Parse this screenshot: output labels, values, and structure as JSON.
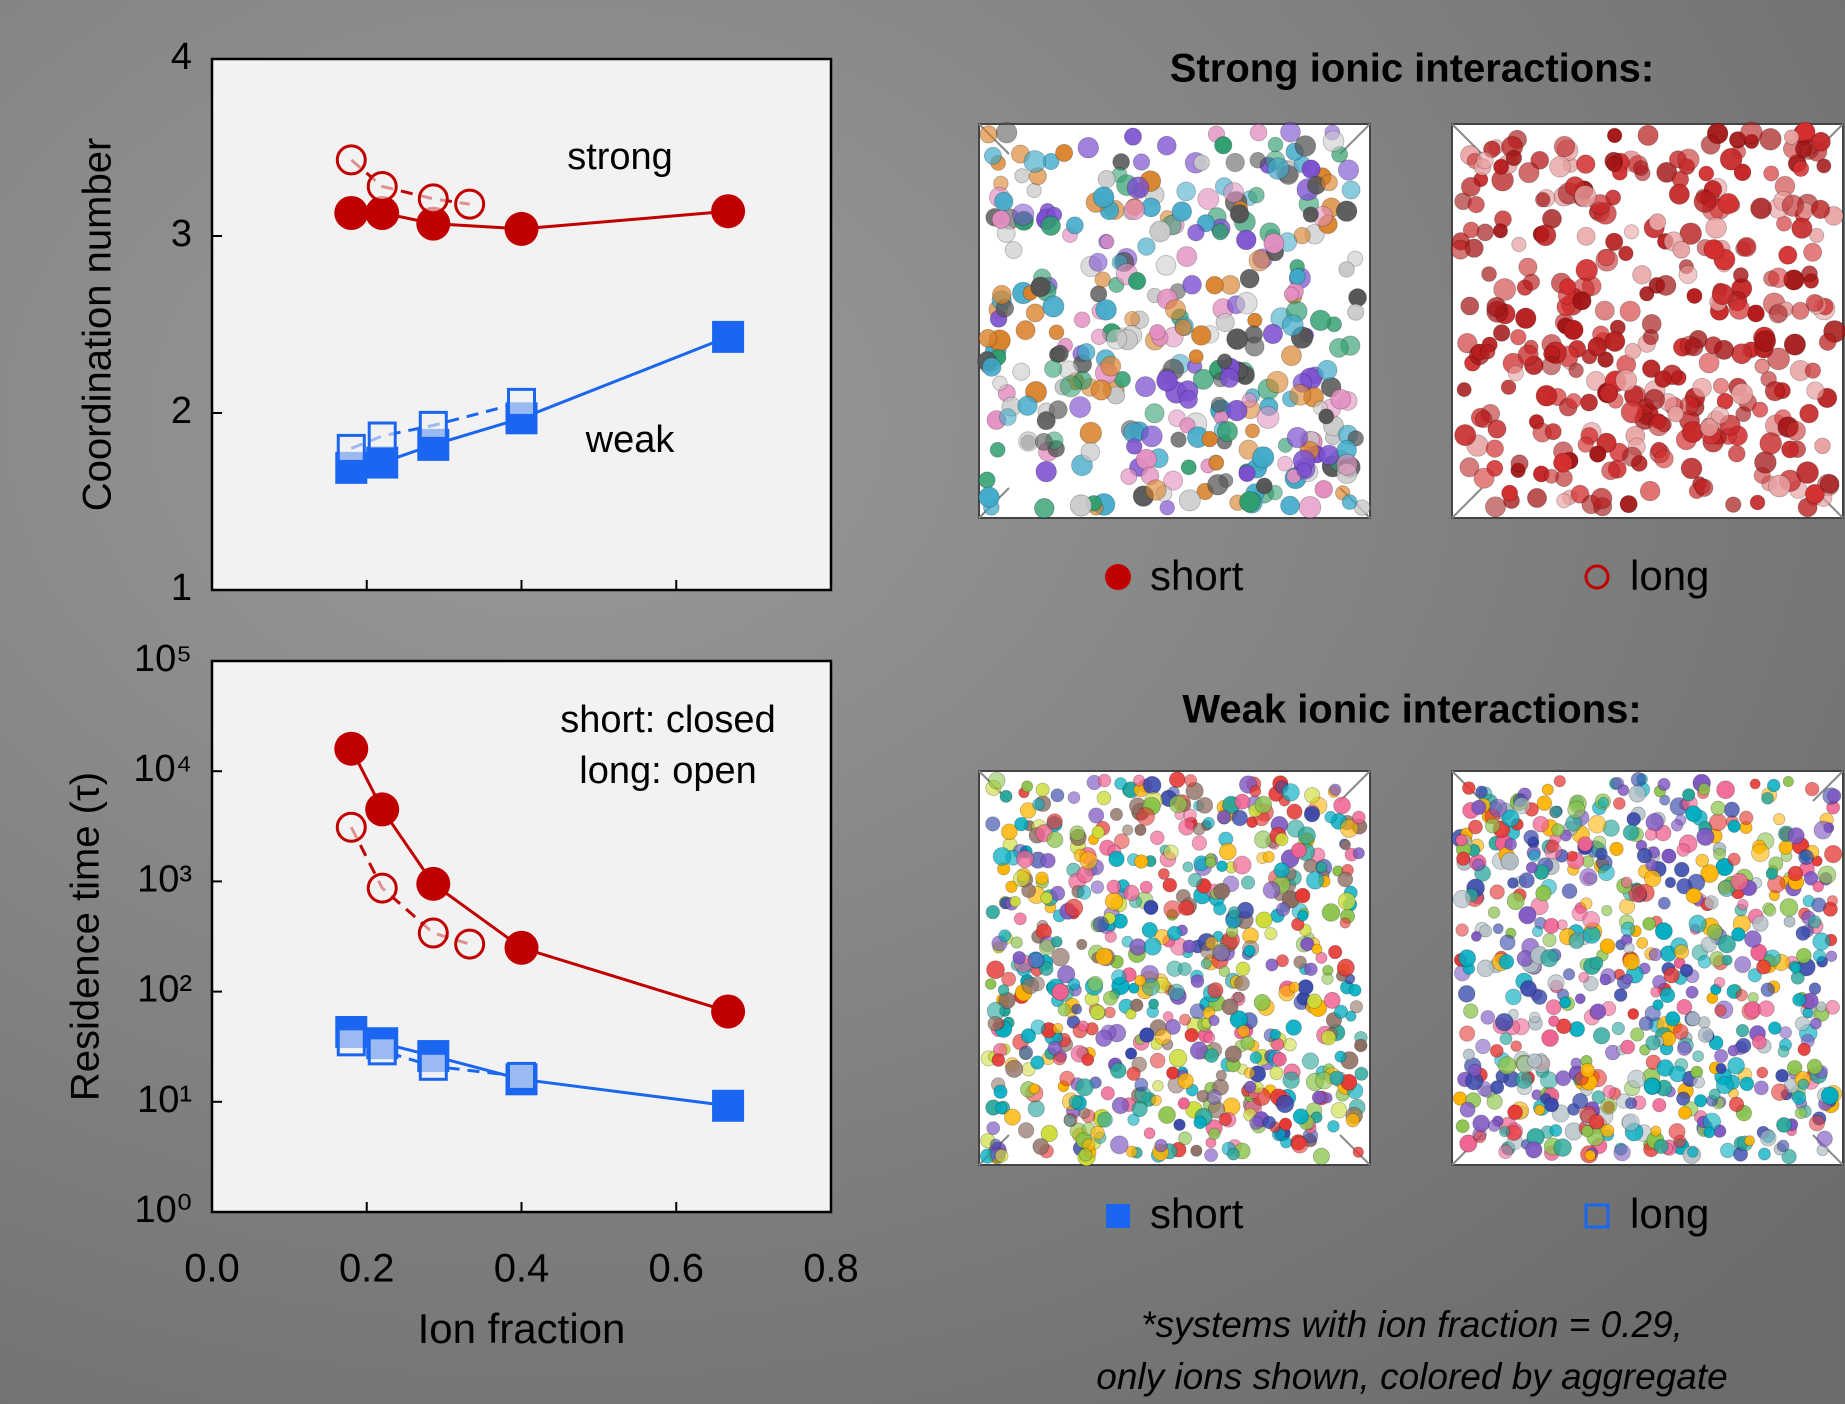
{
  "chart_data": [
    {
      "type": "line",
      "ylabel": "Coordination number",
      "xlim": [
        0,
        0.8
      ],
      "ylim": [
        1,
        4
      ],
      "xticks": [
        0,
        0.2,
        0.4,
        0.6,
        0.8
      ],
      "xtick_labels": false,
      "yticks": [
        1,
        2,
        3,
        4
      ],
      "annotations": [
        "strong",
        "weak"
      ],
      "series": [
        {
          "color": "#c00000",
          "marker": "circle",
          "filled": true,
          "dashed": false,
          "x": [
            0.18,
            0.22,
            0.286,
            0.4,
            0.667
          ],
          "values": [
            3.13,
            3.13,
            3.07,
            3.04,
            3.14
          ]
        },
        {
          "color": "#c00000",
          "marker": "circle",
          "filled": false,
          "dashed": true,
          "x": [
            0.18,
            0.22,
            0.286,
            0.333
          ],
          "values": [
            3.43,
            3.28,
            3.21,
            3.18
          ]
        },
        {
          "color": "#1a66f0",
          "marker": "square",
          "filled": true,
          "dashed": false,
          "x": [
            0.18,
            0.22,
            0.286,
            0.4,
            0.667
          ],
          "values": [
            1.69,
            1.72,
            1.82,
            1.97,
            2.43
          ]
        },
        {
          "color": "#1a66f0",
          "marker": "square",
          "filled": false,
          "dashed": true,
          "x": [
            0.18,
            0.22,
            0.286,
            0.4
          ],
          "values": [
            1.8,
            1.87,
            1.93,
            2.06
          ]
        }
      ]
    },
    {
      "type": "line",
      "xlabel": "Ion fraction",
      "ylabel": "Residence time (τ)",
      "log_y": true,
      "xlim": [
        0,
        0.8
      ],
      "ylim": [
        1,
        100000
      ],
      "xticks": [
        {
          "value": 0,
          "label": "0.0"
        },
        0.2,
        0.4,
        0.6,
        0.8
      ],
      "xtick_labels": true,
      "yticks": [
        {
          "value": 1,
          "label": "10⁰"
        },
        {
          "value": 10,
          "label": "10¹"
        },
        {
          "value": 100,
          "label": "10²"
        },
        {
          "value": 1000,
          "label": "10³"
        },
        {
          "value": 10000,
          "label": "10⁴"
        },
        {
          "value": 100000,
          "label": "10⁵"
        }
      ],
      "annotations": [
        "short: closed",
        "long: open"
      ],
      "series": [
        {
          "color": "#c00000",
          "marker": "circle",
          "filled": true,
          "dashed": false,
          "x": [
            0.18,
            0.22,
            0.286,
            0.4,
            0.667
          ],
          "values": [
            16000,
            4500,
            950,
            250,
            66
          ]
        },
        {
          "color": "#c00000",
          "marker": "circle",
          "filled": false,
          "dashed": true,
          "x": [
            0.18,
            0.22,
            0.286,
            0.333
          ],
          "values": [
            3100,
            870,
            340,
            270
          ]
        },
        {
          "color": "#1a66f0",
          "marker": "square",
          "filled": true,
          "dashed": false,
          "x": [
            0.18,
            0.22,
            0.286,
            0.4,
            0.667
          ],
          "values": [
            43,
            34,
            26,
            16,
            9.2
          ]
        },
        {
          "color": "#1a66f0",
          "marker": "square",
          "filled": false,
          "dashed": true,
          "x": [
            0.18,
            0.22,
            0.286,
            0.4
          ],
          "values": [
            35,
            29,
            21,
            17
          ]
        }
      ]
    }
  ],
  "panels": {
    "strong": {
      "title": "Strong ionic interactions:",
      "legend": [
        "short",
        "long"
      ]
    },
    "weak": {
      "title": "Weak ionic interactions:",
      "legend": [
        "short",
        "long"
      ]
    },
    "footnote": [
      "*systems with ion fraction = 0.29,",
      "only ions shown, colored by aggregate"
    ]
  }
}
